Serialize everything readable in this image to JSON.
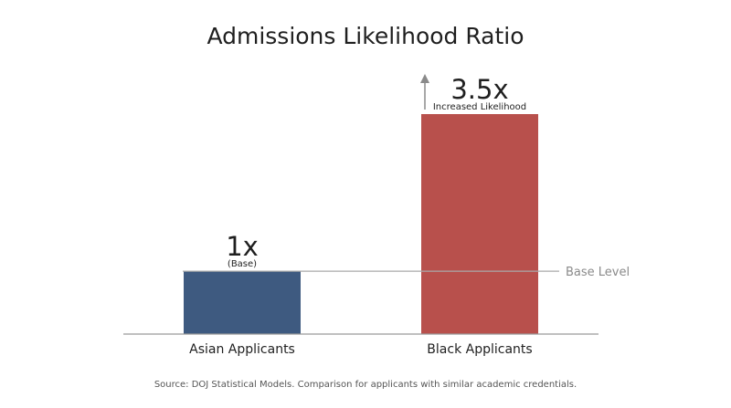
{
  "chart_data": {
    "type": "bar",
    "title": "Admissions Likelihood Ratio",
    "categories": [
      "Asian Applicants",
      "Black Applicants"
    ],
    "values": [
      1,
      3.5
    ],
    "value_labels": [
      "1x",
      "3.5x"
    ],
    "value_sublabels": [
      "(Base)",
      "Increased Likelihood"
    ],
    "colors": [
      "#3e5a80",
      "#b8504c"
    ],
    "ylim": [
      0,
      3.5
    ],
    "reference_line": {
      "value": 1,
      "label": "Base Level"
    },
    "grid": false,
    "legend": "none",
    "source": "Source: DOJ Statistical Models. Comparison for applicants with similar academic credentials."
  }
}
